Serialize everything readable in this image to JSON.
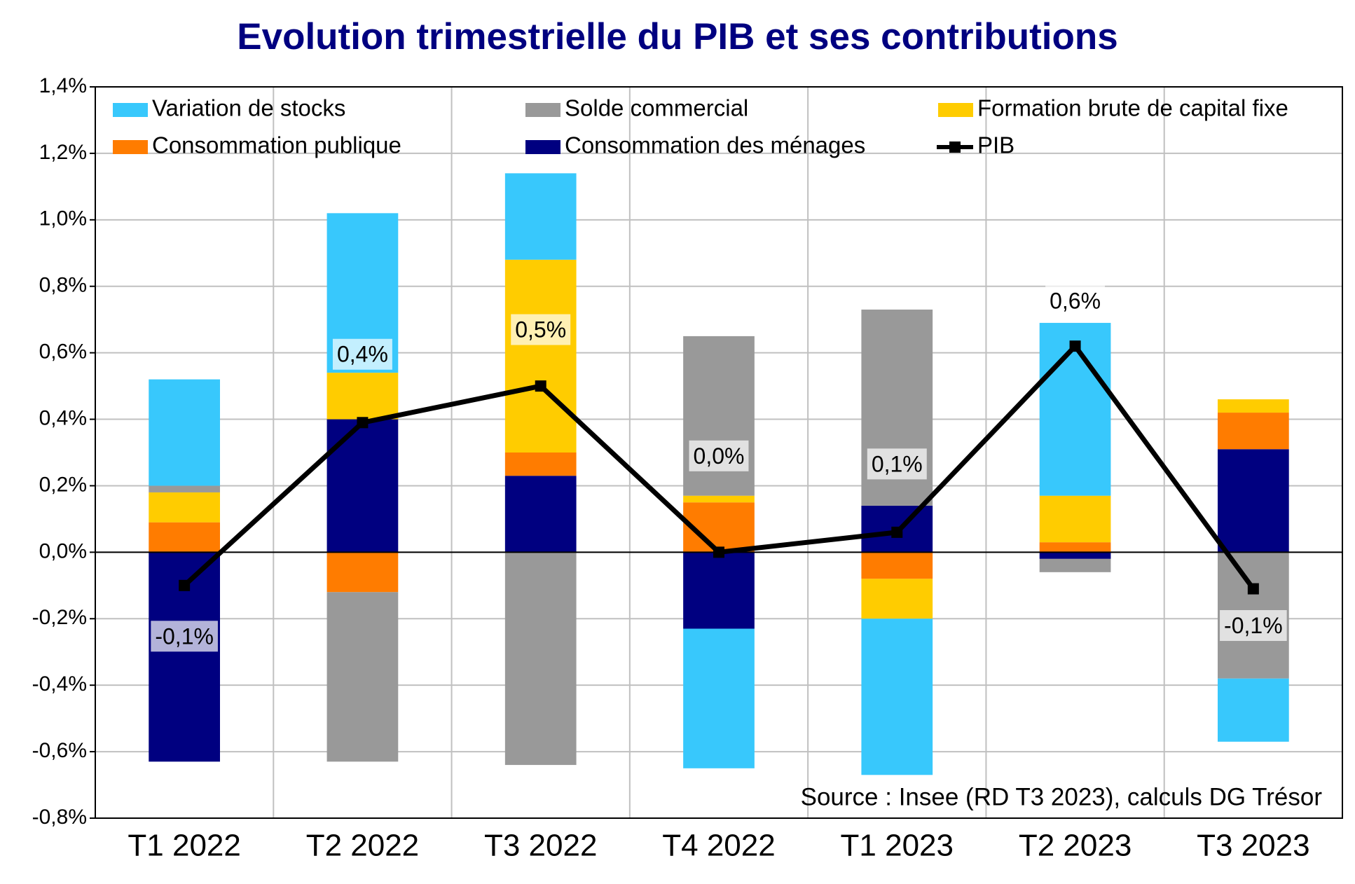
{
  "chart_data": {
    "type": "bar",
    "stacked": true,
    "title": "Evolution trimestrielle du PIB et ses contributions",
    "source": "Source : Insee (RD T3 2023), calculs DG Trésor",
    "categories": [
      "T1 2022",
      "T2 2022",
      "T3 2022",
      "T4 2022",
      "T1 2023",
      "T2 2023",
      "T3 2023"
    ],
    "series": [
      {
        "name": "Variation de stocks",
        "color": "#38c8fc",
        "values": [
          0.32,
          0.48,
          0.26,
          -0.42,
          -0.47,
          0.52,
          -0.19
        ]
      },
      {
        "name": "Solde commercial",
        "color": "#999999",
        "values": [
          0.02,
          -0.51,
          -0.64,
          0.48,
          0.59,
          -0.04,
          -0.38
        ]
      },
      {
        "name": "Formation brute de capital fixe",
        "color": "#ffcc00",
        "values": [
          0.09,
          0.14,
          0.58,
          0.02,
          -0.12,
          0.14,
          0.04
        ]
      },
      {
        "name": "Consommation publique",
        "color": "#ff7c00",
        "values": [
          0.09,
          -0.12,
          0.07,
          0.15,
          -0.08,
          0.03,
          0.11
        ]
      },
      {
        "name": "Consommation des ménages",
        "color": "#000080",
        "values": [
          -0.63,
          0.4,
          0.23,
          -0.23,
          0.14,
          -0.02,
          0.31
        ]
      },
      {
        "name": "PIB",
        "type": "line",
        "color": "#000000",
        "values": [
          -0.1,
          0.39,
          0.5,
          0.0,
          0.06,
          0.62,
          -0.11
        ],
        "value_labels": [
          "-0,1%",
          "0,4%",
          "0,5%",
          "0,0%",
          "0,1%",
          "0,6%",
          "-0,1%"
        ]
      }
    ],
    "ylim": [
      -0.8,
      1.4
    ],
    "yticks": [
      {
        "value": -0.8,
        "label": "-0,8%"
      },
      {
        "value": -0.6,
        "label": "-0,6%"
      },
      {
        "value": -0.4,
        "label": "-0,4%"
      },
      {
        "value": -0.2,
        "label": "-0,2%"
      },
      {
        "value": 0,
        "label": "0,0%"
      },
      {
        "value": 0.2,
        "label": "0,2%"
      },
      {
        "value": 0.4,
        "label": "0,4%"
      },
      {
        "value": 0.6,
        "label": "0,6%"
      },
      {
        "value": 0.8,
        "label": "0,8%"
      },
      {
        "value": 1.0,
        "label": "1,0%"
      },
      {
        "value": 1.2,
        "label": "1,2%"
      },
      {
        "value": 1.4,
        "label": "1,4%"
      }
    ],
    "grid": true
  }
}
